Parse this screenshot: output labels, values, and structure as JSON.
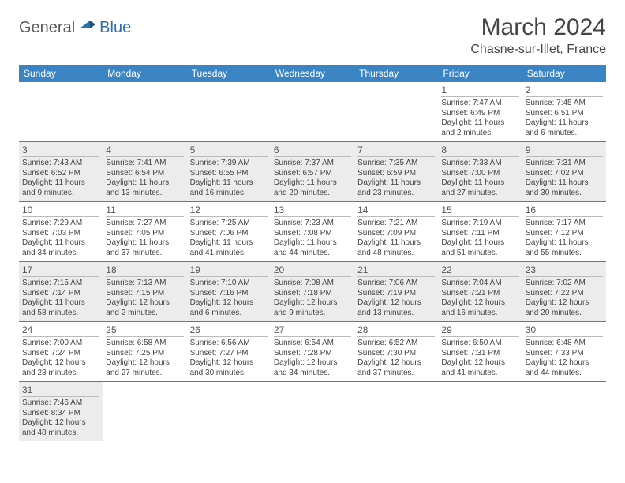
{
  "logo": {
    "general": "General",
    "blue": "Blue"
  },
  "title": "March 2024",
  "location": "Chasne-sur-Illet, France",
  "colors": {
    "header_bg": "#3b84c4",
    "header_text": "#ffffff",
    "shade_bg": "#ececec",
    "rule": "#3b84c4",
    "logo_blue": "#2f6fa8"
  },
  "weekday_labels": [
    "Sunday",
    "Monday",
    "Tuesday",
    "Wednesday",
    "Thursday",
    "Friday",
    "Saturday"
  ],
  "weeks": [
    [
      null,
      null,
      null,
      null,
      null,
      {
        "d": "1",
        "sr": "Sunrise: 7:47 AM",
        "ss": "Sunset: 6:49 PM",
        "dl": "Daylight: 11 hours and 2 minutes."
      },
      {
        "d": "2",
        "sr": "Sunrise: 7:45 AM",
        "ss": "Sunset: 6:51 PM",
        "dl": "Daylight: 11 hours and 6 minutes."
      }
    ],
    [
      {
        "d": "3",
        "sr": "Sunrise: 7:43 AM",
        "ss": "Sunset: 6:52 PM",
        "dl": "Daylight: 11 hours and 9 minutes."
      },
      {
        "d": "4",
        "sr": "Sunrise: 7:41 AM",
        "ss": "Sunset: 6:54 PM",
        "dl": "Daylight: 11 hours and 13 minutes."
      },
      {
        "d": "5",
        "sr": "Sunrise: 7:39 AM",
        "ss": "Sunset: 6:55 PM",
        "dl": "Daylight: 11 hours and 16 minutes."
      },
      {
        "d": "6",
        "sr": "Sunrise: 7:37 AM",
        "ss": "Sunset: 6:57 PM",
        "dl": "Daylight: 11 hours and 20 minutes."
      },
      {
        "d": "7",
        "sr": "Sunrise: 7:35 AM",
        "ss": "Sunset: 6:59 PM",
        "dl": "Daylight: 11 hours and 23 minutes."
      },
      {
        "d": "8",
        "sr": "Sunrise: 7:33 AM",
        "ss": "Sunset: 7:00 PM",
        "dl": "Daylight: 11 hours and 27 minutes."
      },
      {
        "d": "9",
        "sr": "Sunrise: 7:31 AM",
        "ss": "Sunset: 7:02 PM",
        "dl": "Daylight: 11 hours and 30 minutes."
      }
    ],
    [
      {
        "d": "10",
        "sr": "Sunrise: 7:29 AM",
        "ss": "Sunset: 7:03 PM",
        "dl": "Daylight: 11 hours and 34 minutes."
      },
      {
        "d": "11",
        "sr": "Sunrise: 7:27 AM",
        "ss": "Sunset: 7:05 PM",
        "dl": "Daylight: 11 hours and 37 minutes."
      },
      {
        "d": "12",
        "sr": "Sunrise: 7:25 AM",
        "ss": "Sunset: 7:06 PM",
        "dl": "Daylight: 11 hours and 41 minutes."
      },
      {
        "d": "13",
        "sr": "Sunrise: 7:23 AM",
        "ss": "Sunset: 7:08 PM",
        "dl": "Daylight: 11 hours and 44 minutes."
      },
      {
        "d": "14",
        "sr": "Sunrise: 7:21 AM",
        "ss": "Sunset: 7:09 PM",
        "dl": "Daylight: 11 hours and 48 minutes."
      },
      {
        "d": "15",
        "sr": "Sunrise: 7:19 AM",
        "ss": "Sunset: 7:11 PM",
        "dl": "Daylight: 11 hours and 51 minutes."
      },
      {
        "d": "16",
        "sr": "Sunrise: 7:17 AM",
        "ss": "Sunset: 7:12 PM",
        "dl": "Daylight: 11 hours and 55 minutes."
      }
    ],
    [
      {
        "d": "17",
        "sr": "Sunrise: 7:15 AM",
        "ss": "Sunset: 7:14 PM",
        "dl": "Daylight: 11 hours and 58 minutes."
      },
      {
        "d": "18",
        "sr": "Sunrise: 7:13 AM",
        "ss": "Sunset: 7:15 PM",
        "dl": "Daylight: 12 hours and 2 minutes."
      },
      {
        "d": "19",
        "sr": "Sunrise: 7:10 AM",
        "ss": "Sunset: 7:16 PM",
        "dl": "Daylight: 12 hours and 6 minutes."
      },
      {
        "d": "20",
        "sr": "Sunrise: 7:08 AM",
        "ss": "Sunset: 7:18 PM",
        "dl": "Daylight: 12 hours and 9 minutes."
      },
      {
        "d": "21",
        "sr": "Sunrise: 7:06 AM",
        "ss": "Sunset: 7:19 PM",
        "dl": "Daylight: 12 hours and 13 minutes."
      },
      {
        "d": "22",
        "sr": "Sunrise: 7:04 AM",
        "ss": "Sunset: 7:21 PM",
        "dl": "Daylight: 12 hours and 16 minutes."
      },
      {
        "d": "23",
        "sr": "Sunrise: 7:02 AM",
        "ss": "Sunset: 7:22 PM",
        "dl": "Daylight: 12 hours and 20 minutes."
      }
    ],
    [
      {
        "d": "24",
        "sr": "Sunrise: 7:00 AM",
        "ss": "Sunset: 7:24 PM",
        "dl": "Daylight: 12 hours and 23 minutes."
      },
      {
        "d": "25",
        "sr": "Sunrise: 6:58 AM",
        "ss": "Sunset: 7:25 PM",
        "dl": "Daylight: 12 hours and 27 minutes."
      },
      {
        "d": "26",
        "sr": "Sunrise: 6:56 AM",
        "ss": "Sunset: 7:27 PM",
        "dl": "Daylight: 12 hours and 30 minutes."
      },
      {
        "d": "27",
        "sr": "Sunrise: 6:54 AM",
        "ss": "Sunset: 7:28 PM",
        "dl": "Daylight: 12 hours and 34 minutes."
      },
      {
        "d": "28",
        "sr": "Sunrise: 6:52 AM",
        "ss": "Sunset: 7:30 PM",
        "dl": "Daylight: 12 hours and 37 minutes."
      },
      {
        "d": "29",
        "sr": "Sunrise: 6:50 AM",
        "ss": "Sunset: 7:31 PM",
        "dl": "Daylight: 12 hours and 41 minutes."
      },
      {
        "d": "30",
        "sr": "Sunrise: 6:48 AM",
        "ss": "Sunset: 7:33 PM",
        "dl": "Daylight: 12 hours and 44 minutes."
      }
    ],
    [
      {
        "d": "31",
        "sr": "Sunrise: 7:46 AM",
        "ss": "Sunset: 8:34 PM",
        "dl": "Daylight: 12 hours and 48 minutes."
      },
      null,
      null,
      null,
      null,
      null,
      null
    ]
  ]
}
